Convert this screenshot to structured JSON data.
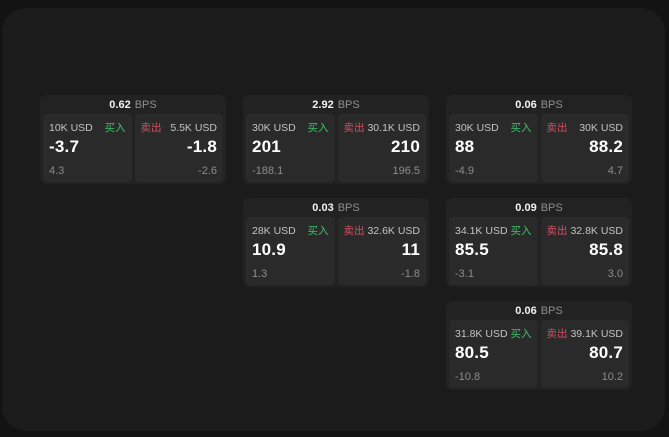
{
  "colors": {
    "background_outer": "#131314",
    "background_panel": "#1b1b1c",
    "card": "#222223",
    "tile": "#2a2a2b",
    "buy_green": "#3fc268",
    "sell_red": "#cf5064",
    "value_white": "#ffffff",
    "muted_gray": "#8c8c8c"
  },
  "cards": [
    {
      "bps_value": "0.62",
      "bps_unit": "BPS",
      "buy": {
        "amount": "10K USD",
        "label": "买入",
        "price": "-3.7",
        "sub": "4.3"
      },
      "sell": {
        "label": "卖出",
        "amount": "5.5K USD",
        "price": "-1.8",
        "sub": "-2.6"
      }
    },
    {
      "bps_value": "2.92",
      "bps_unit": "BPS",
      "buy": {
        "amount": "30K USD",
        "label": "买入",
        "price": "201",
        "sub": "-188.1"
      },
      "sell": {
        "label": "卖出",
        "amount": "30.1K USD",
        "price": "210",
        "sub": "196.5"
      }
    },
    {
      "bps_value": "0.06",
      "bps_unit": "BPS",
      "buy": {
        "amount": "30K USD",
        "label": "买入",
        "price": "88",
        "sub": "-4.9"
      },
      "sell": {
        "label": "卖出",
        "amount": "30K USD",
        "price": "88.2",
        "sub": "4.7"
      }
    },
    {
      "bps_value": "0.03",
      "bps_unit": "BPS",
      "buy": {
        "amount": "28K USD",
        "label": "买入",
        "price": "10.9",
        "sub": "1.3"
      },
      "sell": {
        "label": "卖出",
        "amount": "32.6K USD",
        "price": "11",
        "sub": "-1.8"
      }
    },
    {
      "bps_value": "0.09",
      "bps_unit": "BPS",
      "buy": {
        "amount": "34.1K USD",
        "label": "买入",
        "price": "85.5",
        "sub": "-3.1"
      },
      "sell": {
        "label": "卖出",
        "amount": "32.8K USD",
        "price": "85.8",
        "sub": "3.0"
      }
    },
    {
      "bps_value": "0.06",
      "bps_unit": "BPS",
      "buy": {
        "amount": "31.8K USD",
        "label": "买入",
        "price": "80.5",
        "sub": "-10.8"
      },
      "sell": {
        "label": "卖出",
        "amount": "39.1K USD",
        "price": "80.7",
        "sub": "10.2"
      }
    }
  ]
}
